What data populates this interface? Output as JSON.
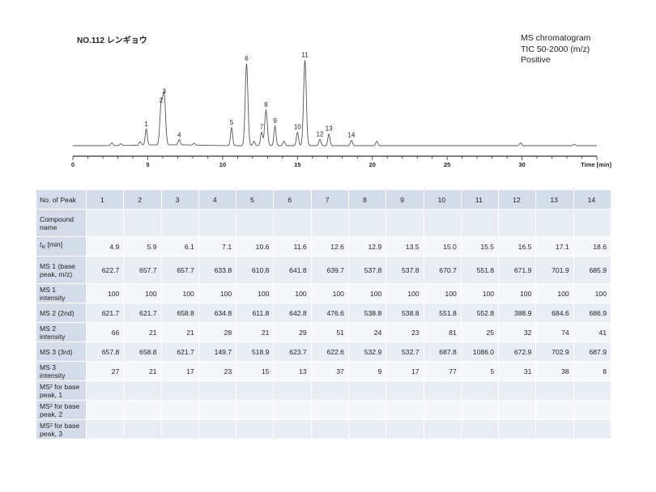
{
  "header": {
    "title": "NO.112 レンギョウ",
    "info_lines": [
      "MS chromatogram",
      "TIC 50-2000 (m/z)",
      "Positive"
    ]
  },
  "chart_data": {
    "type": "line",
    "xlabel": "Time [min]",
    "xlim": [
      0,
      35
    ],
    "x_ticks": [
      0,
      5,
      10,
      15,
      20,
      25,
      30
    ],
    "grid": false,
    "ylim": [
      0,
      1.0
    ],
    "peaks": [
      {
        "label": "1",
        "time": 4.9,
        "height": 0.18
      },
      {
        "label": "2",
        "time": 5.9,
        "height": 0.45
      },
      {
        "label": "3",
        "time": 6.1,
        "height": 0.55
      },
      {
        "label": "4",
        "time": 7.1,
        "height": 0.06
      },
      {
        "label": "5",
        "time": 10.6,
        "height": 0.2
      },
      {
        "label": "6",
        "time": 11.6,
        "height": 0.92
      },
      {
        "label": "7",
        "time": 12.6,
        "height": 0.15
      },
      {
        "label": "8",
        "time": 12.9,
        "height": 0.4
      },
      {
        "label": "9",
        "time": 13.5,
        "height": 0.22
      },
      {
        "label": "10",
        "time": 15.0,
        "height": 0.15
      },
      {
        "label": "11",
        "time": 15.5,
        "height": 0.96
      },
      {
        "label": "12",
        "time": 16.5,
        "height": 0.07
      },
      {
        "label": "13",
        "time": 17.1,
        "height": 0.13
      },
      {
        "label": "14",
        "time": 18.6,
        "height": 0.06
      }
    ],
    "minor_peaks": [
      {
        "time": 2.6,
        "height": 0.03
      },
      {
        "time": 3.2,
        "height": 0.02
      },
      {
        "time": 4.5,
        "height": 0.04
      },
      {
        "time": 8.1,
        "height": 0.02
      },
      {
        "time": 12.1,
        "height": 0.05
      },
      {
        "time": 14.1,
        "height": 0.05
      },
      {
        "time": 20.3,
        "height": 0.05
      },
      {
        "time": 29.9,
        "height": 0.03
      },
      {
        "time": 33.5,
        "height": 0.015
      }
    ]
  },
  "table": {
    "header_label": "No. of Peak",
    "peak_numbers": [
      "1",
      "2",
      "3",
      "4",
      "5",
      "6",
      "7",
      "8",
      "9",
      "10",
      "11",
      "12",
      "13",
      "14"
    ],
    "rows": [
      {
        "label": "Compound name",
        "values": [
          "",
          "",
          "",
          "",
          "",
          "",
          "",
          "",
          "",
          "",
          "",
          "",
          "",
          ""
        ]
      },
      {
        "label": "tR [min]",
        "values": [
          "4.9",
          "5.9",
          "6.1",
          "7.1",
          "10.6",
          "11.6",
          "12.6",
          "12.9",
          "13.5",
          "15.0",
          "15.5",
          "16.5",
          "17.1",
          "18.6"
        ]
      },
      {
        "label": "MS 1 (base peak, m/z)",
        "values": [
          "622.7",
          "657.7",
          "657.7",
          "633.8",
          "610.8",
          "641.8",
          "639.7",
          "537.8",
          "537.8",
          "670.7",
          "551.8",
          "671.9",
          "701.9",
          "685.9"
        ]
      },
      {
        "label": "MS 1 intensity",
        "values": [
          "100",
          "100",
          "100",
          "100",
          "100",
          "100",
          "100",
          "100",
          "100",
          "100",
          "100",
          "100",
          "100",
          "100"
        ]
      },
      {
        "label": "MS 2 (2nd)",
        "values": [
          "621.7",
          "621.7",
          "658.8",
          "634.8",
          "611.8",
          "642.8",
          "476.6",
          "538.8",
          "538.8",
          "551.8",
          "552.8",
          "388.9",
          "684.6",
          "686.9"
        ]
      },
      {
        "label": "MS 2 intensity",
        "values": [
          "66",
          "21",
          "21",
          "28",
          "21",
          "29",
          "51",
          "24",
          "23",
          "81",
          "25",
          "32",
          "74",
          "41"
        ]
      },
      {
        "label": "MS 3 (3rd)",
        "values": [
          "657.8",
          "658.8",
          "621.7",
          "149.7",
          "518.9",
          "623.7",
          "622.6",
          "532.9",
          "532.7",
          "687.8",
          "1086.0",
          "672.9",
          "702.9",
          "687.9"
        ]
      },
      {
        "label": "MS 3 intensity",
        "values": [
          "27",
          "21",
          "17",
          "23",
          "15",
          "13",
          "37",
          "9",
          "17",
          "77",
          "5",
          "31",
          "38",
          "8"
        ]
      },
      {
        "label": "MS² for base peak, 1",
        "values": [
          "",
          "",
          "",
          "",
          "",
          "",
          "",
          "",
          "",
          "",
          "",
          "",
          "",
          ""
        ]
      },
      {
        "label": "MS² for base peak, 2",
        "values": [
          "",
          "",
          "",
          "",
          "",
          "",
          "",
          "",
          "",
          "",
          "",
          "",
          "",
          ""
        ]
      },
      {
        "label": "MS² for base peak, 3",
        "values": [
          "",
          "",
          "",
          "",
          "",
          "",
          "",
          "",
          "",
          "",
          "",
          "",
          "",
          ""
        ]
      }
    ]
  }
}
